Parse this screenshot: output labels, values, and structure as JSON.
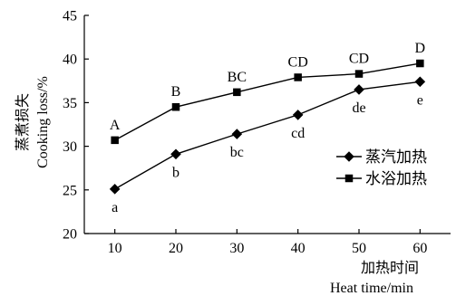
{
  "chart_data": {
    "type": "line",
    "x": [
      10,
      20,
      30,
      40,
      50,
      60
    ],
    "xlim": [
      5,
      65
    ],
    "ylim": [
      20,
      45
    ],
    "xticks": [
      10,
      20,
      30,
      40,
      50,
      60
    ],
    "yticks": [
      20,
      25,
      30,
      35,
      40,
      45
    ],
    "xlabel_cn": "加热时间",
    "xlabel_en": "Heat time/min",
    "ylabel_cn": "蒸煮损失",
    "ylabel_en": "Cooking loss/%",
    "grid": false,
    "legend_position": "right",
    "series": [
      {
        "name": "蒸汽加热",
        "marker": "diamond",
        "values": [
          25.1,
          29.1,
          31.4,
          33.6,
          36.5,
          37.4
        ],
        "labels": [
          "a",
          "b",
          "bc",
          "cd",
          "de",
          "e"
        ],
        "label_position": "below"
      },
      {
        "name": "水浴加热",
        "marker": "square",
        "values": [
          30.7,
          34.5,
          36.2,
          37.9,
          38.3,
          39.5
        ],
        "labels": [
          "A",
          "B",
          "BC",
          "CD",
          "CD",
          "D"
        ],
        "label_position": "above"
      }
    ]
  }
}
